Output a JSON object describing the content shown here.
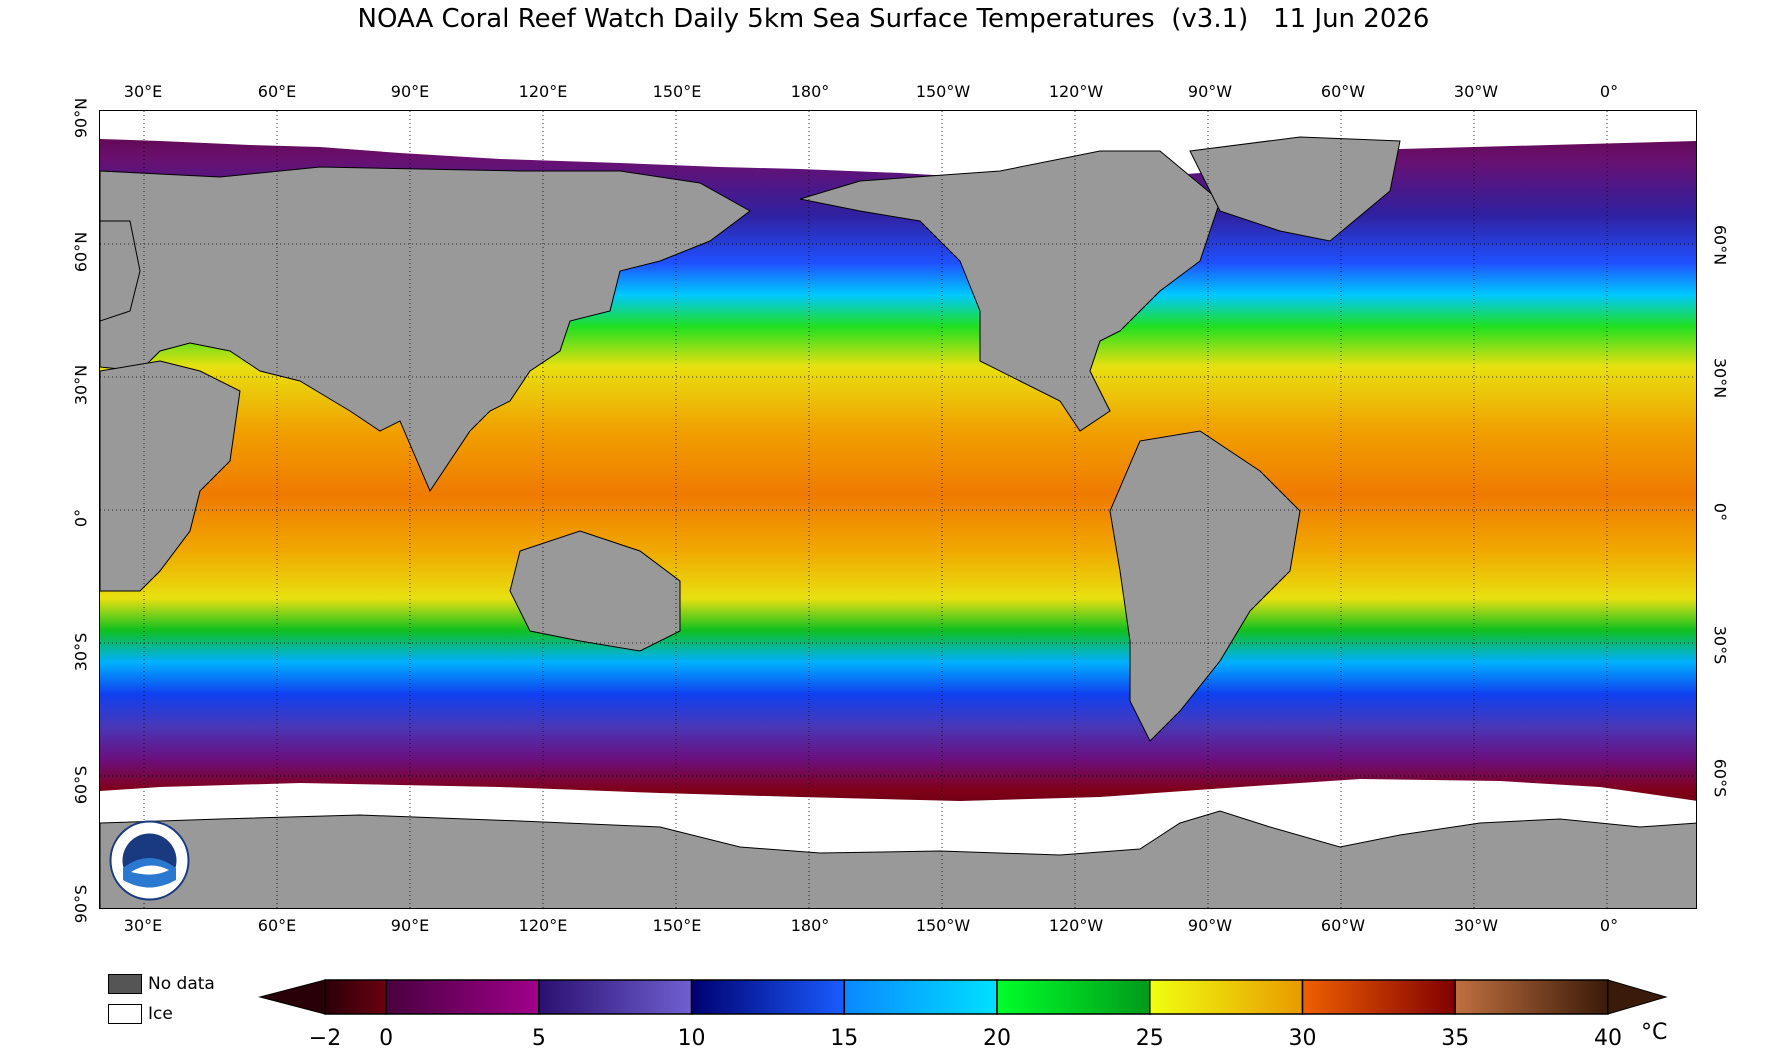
{
  "title": "NOAA Coral Reef Watch Daily 5km Sea Surface Temperatures  (v3.1)   11 Jun 2026",
  "map": {
    "projection": "equirectangular",
    "lon_labels": [
      "30°E",
      "60°E",
      "90°E",
      "120°E",
      "150°E",
      "180°",
      "150°W",
      "120°W",
      "90°W",
      "60°W",
      "30°W",
      "0°"
    ],
    "lat_labels_left": [
      "90°N",
      "60°N",
      "30°N",
      "0°",
      "30°S",
      "60°S",
      "90°S"
    ],
    "lat_labels_right": [
      "60°N",
      "30°N",
      "0°",
      "30°S",
      "60°S"
    ],
    "colors": {
      "land": "#999999",
      "ice": "#ffffff",
      "border": "#000000"
    }
  },
  "legend": {
    "no_data_label": "No data",
    "no_data_color": "#555555",
    "ice_label": "Ice",
    "ice_color": "#ffffff"
  },
  "colorbar": {
    "ticks": [
      "−2",
      "0",
      "5",
      "10",
      "15",
      "20",
      "25",
      "30",
      "35",
      "40"
    ],
    "unit": "°C",
    "min": -2,
    "max": 40,
    "bands": [
      {
        "from": -2,
        "to": 0,
        "colors": [
          "#2a0008",
          "#6b0010"
        ]
      },
      {
        "from": 0,
        "to": 5,
        "colors": [
          "#4a0040",
          "#a0008a"
        ]
      },
      {
        "from": 5,
        "to": 10,
        "colors": [
          "#2a1070",
          "#7060d0"
        ]
      },
      {
        "from": 10,
        "to": 15,
        "colors": [
          "#000070",
          "#1a5cff"
        ]
      },
      {
        "from": 15,
        "to": 20,
        "colors": [
          "#0a88ff",
          "#00e0ff"
        ]
      },
      {
        "from": 20,
        "to": 25,
        "colors": [
          "#00ff2a",
          "#009a1a"
        ]
      },
      {
        "from": 25,
        "to": 30,
        "colors": [
          "#f0ff10",
          "#e89a00"
        ]
      },
      {
        "from": 30,
        "to": 35,
        "colors": [
          "#f06000",
          "#800000"
        ]
      },
      {
        "from": 35,
        "to": 40,
        "colors": [
          "#c07040",
          "#3a1a08"
        ]
      }
    ]
  }
}
